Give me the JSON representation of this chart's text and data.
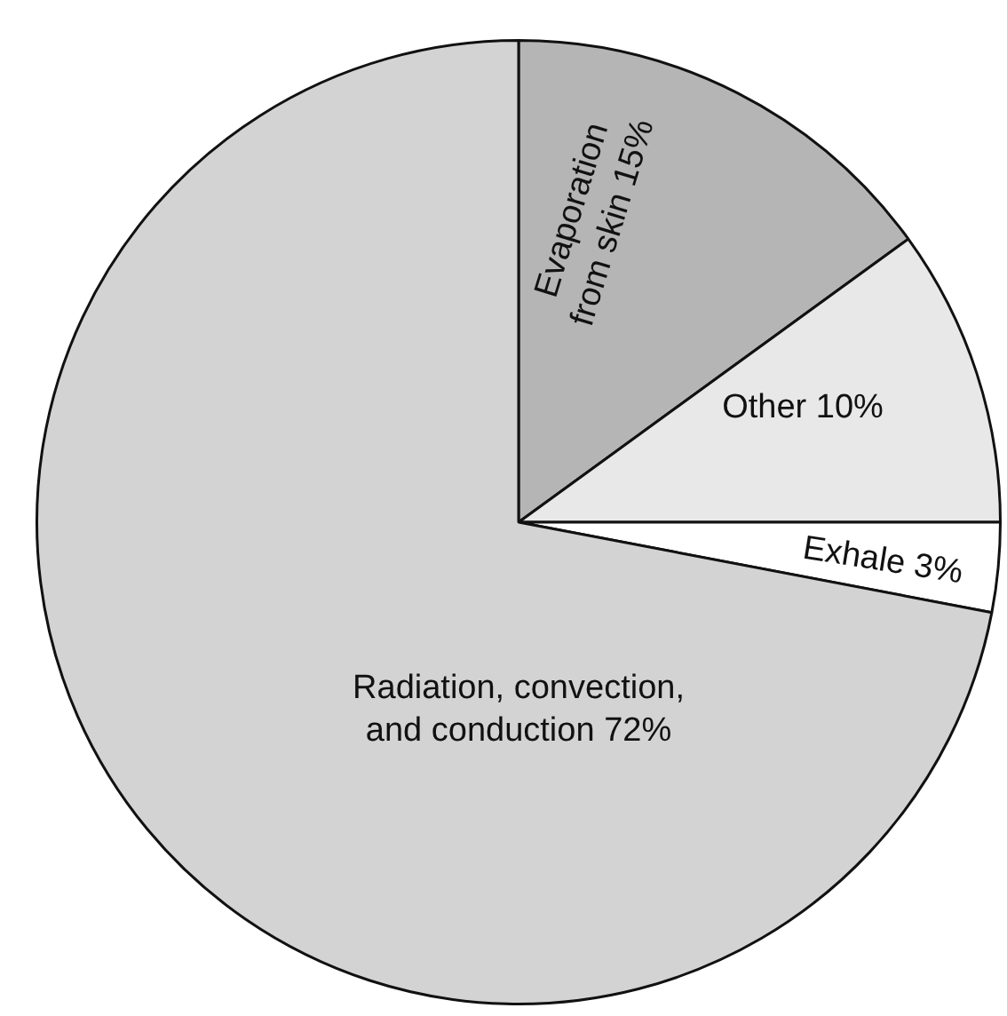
{
  "chart_data": {
    "type": "pie",
    "categories": [
      "Evaporation from skin",
      "Other",
      "Exhale",
      "Radiation, convection, and conduction"
    ],
    "values": [
      15,
      10,
      3,
      72
    ],
    "colors": [
      "#b5b5b5",
      "#e8e8e8",
      "#ffffff",
      "#d3d3d3"
    ],
    "value_labels": [
      "15%",
      "10%",
      "3%",
      "72%"
    ],
    "legend": false
  }
}
